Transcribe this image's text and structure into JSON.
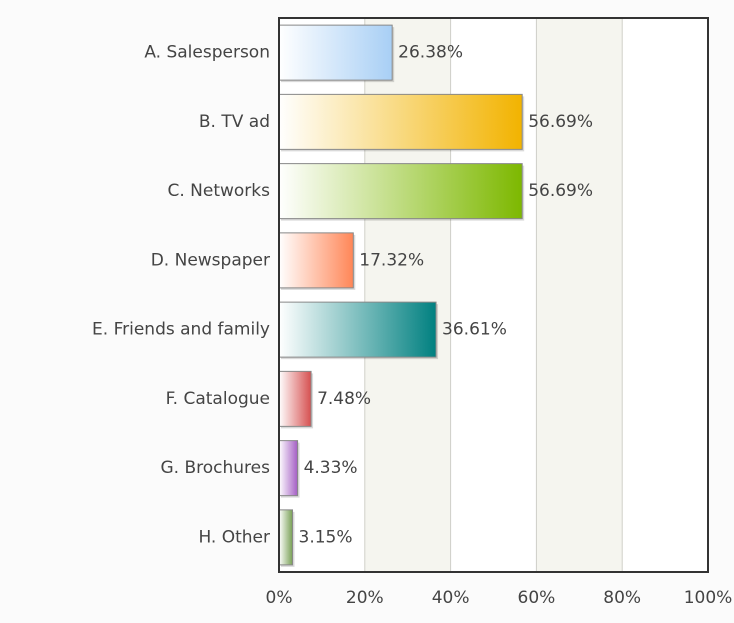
{
  "chart_data": {
    "type": "bar",
    "orientation": "horizontal",
    "categories": [
      "A. Salesperson",
      "B. TV ad",
      "C. Networks",
      "D. Newspaper",
      "E. Friends and family",
      "F. Catalogue",
      "G. Brochures",
      "H. Other"
    ],
    "values": [
      26.38,
      56.69,
      56.69,
      17.32,
      36.61,
      7.48,
      4.33,
      3.15
    ],
    "value_labels": [
      "26.38%",
      "56.69%",
      "56.69%",
      "17.32%",
      "36.61%",
      "7.48%",
      "4.33%",
      "3.15%"
    ],
    "colors": [
      "#a8cff5",
      "#f2b300",
      "#7db800",
      "#ff8657",
      "#008080",
      "#d65050",
      "#a45ec4",
      "#78a055"
    ],
    "xlim": [
      0,
      100
    ],
    "xticks": [
      {
        "value": 0,
        "label": "0%"
      },
      {
        "value": 20,
        "label": "20%"
      },
      {
        "value": 40,
        "label": "40%"
      },
      {
        "value": 60,
        "label": "60%"
      },
      {
        "value": 80,
        "label": "80%"
      },
      {
        "value": 100,
        "label": "100%"
      }
    ],
    "grid": true
  }
}
